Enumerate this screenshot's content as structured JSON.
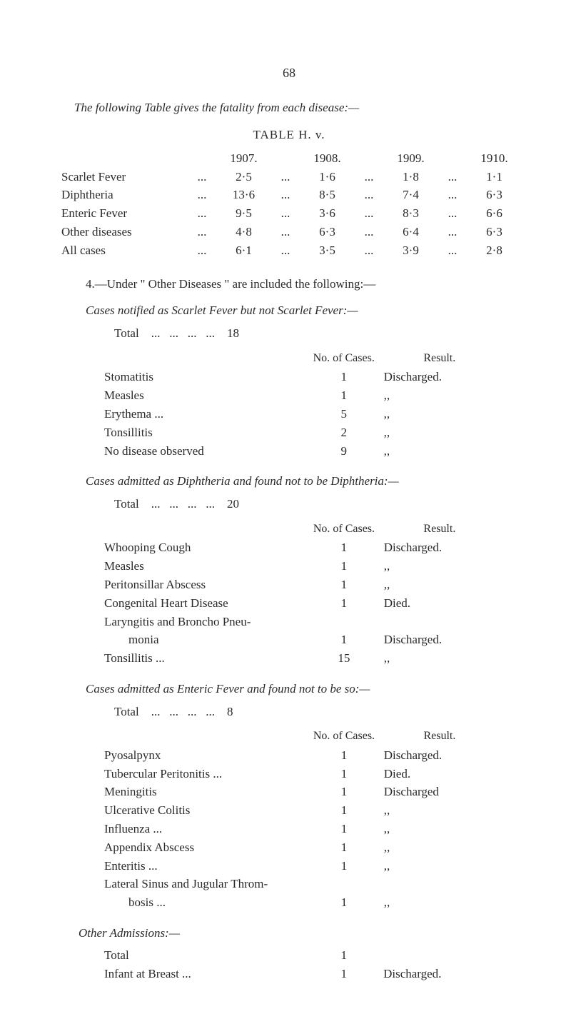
{
  "page_number": "68",
  "intro_line": "The following Table gives the fatality from each disease:—",
  "table_hv": {
    "title": "TABLE H. v.",
    "years": [
      "1907.",
      "1908.",
      "1909.",
      "1910."
    ],
    "rows": [
      {
        "label": "Scarlet Fever",
        "v": [
          "2·5",
          "1·6",
          "1·8",
          "1·1"
        ]
      },
      {
        "label": "Diphtheria",
        "v": [
          "13·6",
          "8·5",
          "7·4",
          "6·3"
        ]
      },
      {
        "label": "Enteric Fever",
        "v": [
          "9·5",
          "3·6",
          "8·3",
          "6·6"
        ]
      },
      {
        "label": "Other diseases",
        "v": [
          "4·8",
          "6·3",
          "6·4",
          "6·3"
        ]
      },
      {
        "label": "All cases",
        "v": [
          "6·1",
          "3·5",
          "3·9",
          "2·8"
        ]
      }
    ]
  },
  "para4": "4.—Under \" Other Diseases \" are included the following:—",
  "section_a": {
    "title": "Cases notified as Scarlet Fever but not Scarlet Fever:—",
    "total_label": "Total",
    "total_value": "18",
    "col_cases": "No. of Cases.",
    "col_result": "Result.",
    "rows": [
      {
        "label": "Stomatitis",
        "n": "1",
        "r": "Discharged."
      },
      {
        "label": "Measles",
        "n": "1",
        "r": ",,"
      },
      {
        "label": "Erythema ...",
        "n": "5",
        "r": ",,"
      },
      {
        "label": "Tonsillitis",
        "n": "2",
        "r": ",,"
      },
      {
        "label": "No disease observed",
        "n": "9",
        "r": ",,"
      }
    ]
  },
  "section_b": {
    "title": "Cases admitted as Diphtheria and found not to be Diphtheria:—",
    "total_label": "Total",
    "total_value": "20",
    "col_cases": "No. of Cases.",
    "col_result": "Result.",
    "rows": [
      {
        "label": "Whooping Cough",
        "n": "1",
        "r": "Discharged."
      },
      {
        "label": "Measles",
        "n": "1",
        "r": ",,"
      },
      {
        "label": "Peritonsillar Abscess",
        "n": "1",
        "r": ",,"
      },
      {
        "label": "Congenital Heart Disease",
        "n": "1",
        "r": "Died."
      },
      {
        "label": "Laryngitis and Broncho Pneu-",
        "n": "",
        "r": ""
      },
      {
        "label": "        monia",
        "n": "1",
        "r": "Discharged."
      },
      {
        "label": "Tonsillitis ...",
        "n": "15",
        "r": ",,"
      }
    ]
  },
  "section_c": {
    "title": "Cases admitted as Enteric Fever and found not to be so:—",
    "total_label": "Total",
    "total_value": "8",
    "col_cases": "No. of Cases.",
    "col_result": "Result.",
    "rows": [
      {
        "label": "Pyosalpynx",
        "n": "1",
        "r": "Discharged."
      },
      {
        "label": "Tubercular Peritonitis ...",
        "n": "1",
        "r": "Died."
      },
      {
        "label": "Meningitis",
        "n": "1",
        "r": "Discharged"
      },
      {
        "label": "Ulcerative Colitis",
        "n": "1",
        "r": ",,"
      },
      {
        "label": "Influenza ...",
        "n": "1",
        "r": ",,"
      },
      {
        "label": "Appendix Abscess",
        "n": "1",
        "r": ",,"
      },
      {
        "label": "Enteritis ...",
        "n": "1",
        "r": ",,"
      },
      {
        "label": "Lateral Sinus and Jugular Throm-",
        "n": "",
        "r": ""
      },
      {
        "label": "        bosis ...",
        "n": "1",
        "r": ",,"
      }
    ]
  },
  "other_adm": {
    "title": "Other Admissions:—",
    "rows": [
      {
        "label": "Total",
        "n": "1",
        "r": ""
      },
      {
        "label": "Infant at Breast ...",
        "n": "1",
        "r": "Discharged."
      }
    ]
  },
  "dots": "..."
}
